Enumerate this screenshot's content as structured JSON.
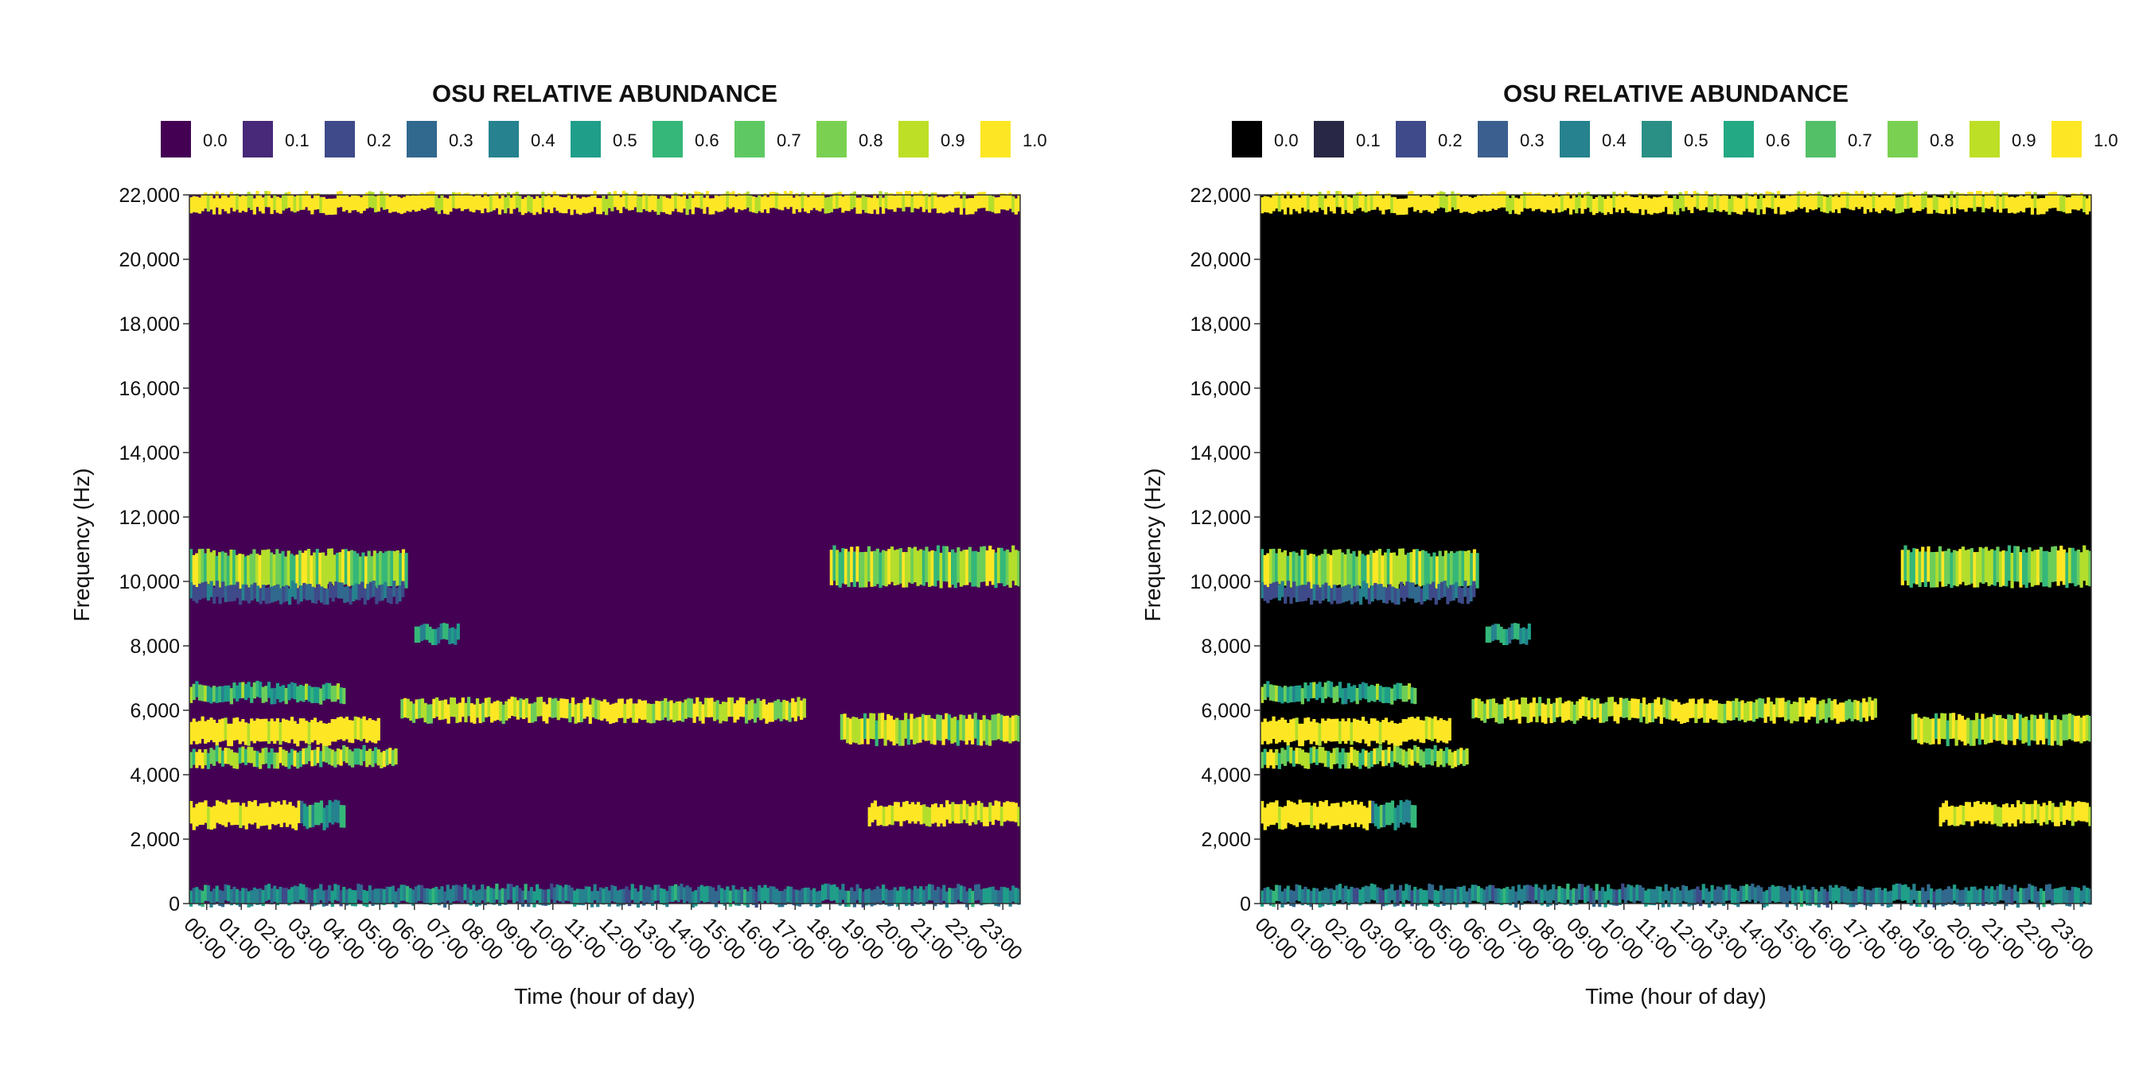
{
  "chart_data": [
    {
      "type": "heatmap",
      "legend_title": "OSU RELATIVE ABUNDANCE",
      "legend_position": "top",
      "xlabel": "Time (hour of day)",
      "ylabel": "Frequency (Hz)",
      "ylim": [
        0,
        22000
      ],
      "x_tick_labels": [
        "00:00",
        "01:00",
        "02:00",
        "03:00",
        "04:00",
        "05:00",
        "06:00",
        "07:00",
        "08:00",
        "09:00",
        "10:00",
        "11:00",
        "12:00",
        "13:00",
        "14:00",
        "15:00",
        "16:00",
        "17:00",
        "18:00",
        "19:00",
        "20:00",
        "21:00",
        "22:00",
        "23:00"
      ],
      "y_tick_labels": [
        "0",
        "2,000",
        "4,000",
        "6,000",
        "8,000",
        "10,000",
        "12,000",
        "14,000",
        "16,000",
        "18,000",
        "20,000",
        "22,000"
      ],
      "y_tick_values": [
        0,
        2000,
        4000,
        6000,
        8000,
        10000,
        12000,
        14000,
        16000,
        18000,
        20000,
        22000
      ],
      "legend_values": [
        "0.0",
        "0.1",
        "0.2",
        "0.3",
        "0.4",
        "0.5",
        "0.6",
        "0.7",
        "0.8",
        "0.9",
        "1.0"
      ],
      "colors": [
        "#440154",
        "#482878",
        "#3E4A89",
        "#31688E",
        "#26828E",
        "#1F9E89",
        "#35B779",
        "#6DCD59",
        "#B4DE2C",
        "#FDE725",
        "#FDE725"
      ],
      "legend_colors": [
        "#440154",
        "#482878",
        "#3E4A89",
        "#31688E",
        "#26828E",
        "#1F9E89",
        "#35B779",
        "#5EC962",
        "#7AD151",
        "#BDDF26",
        "#FDE725"
      ],
      "grid": false,
      "bands": [
        {
          "t0": 0,
          "t1": 24,
          "f0": 21500,
          "f1": 22000,
          "value": 0.95
        },
        {
          "t0": 0,
          "t1": 6.3,
          "f0": 9800,
          "f1": 10900,
          "value": 0.75
        },
        {
          "t0": 18.5,
          "t1": 24,
          "f0": 9900,
          "f1": 11000,
          "value": 0.75
        },
        {
          "t0": 0,
          "t1": 6.2,
          "f0": 9400,
          "f1": 9900,
          "value": 0.25
        },
        {
          "t0": 0,
          "t1": 4.5,
          "f0": 6300,
          "f1": 6800,
          "value": 0.6
        },
        {
          "t0": 0,
          "t1": 5.5,
          "f0": 5000,
          "f1": 5700,
          "value": 1.0
        },
        {
          "t0": 0,
          "t1": 6.0,
          "f0": 4300,
          "f1": 4800,
          "value": 0.75
        },
        {
          "t0": 0,
          "t1": 3.2,
          "f0": 2400,
          "f1": 3100,
          "value": 1.0
        },
        {
          "t0": 3.2,
          "t1": 4.5,
          "f0": 2400,
          "f1": 3100,
          "value": 0.5
        },
        {
          "t0": 6.1,
          "t1": 17.8,
          "f0": 5700,
          "f1": 6300,
          "value": 0.85
        },
        {
          "t0": 18.8,
          "t1": 24,
          "f0": 5000,
          "f1": 5800,
          "value": 0.8
        },
        {
          "t0": 19.6,
          "t1": 24,
          "f0": 2500,
          "f1": 3100,
          "value": 0.95
        },
        {
          "t0": 0,
          "t1": 24,
          "f0": 0,
          "f1": 500,
          "value": 0.4
        },
        {
          "t0": 6.5,
          "t1": 7.8,
          "f0": 8100,
          "f1": 8600,
          "value": 0.5
        }
      ]
    },
    {
      "type": "heatmap",
      "legend_title": "OSU RELATIVE ABUNDANCE",
      "legend_position": "top",
      "xlabel": "Time (hour of day)",
      "ylabel": "Frequency (Hz)",
      "ylim": [
        0,
        22000
      ],
      "x_tick_labels": [
        "00:00",
        "01:00",
        "02:00",
        "03:00",
        "04:00",
        "05:00",
        "06:00",
        "07:00",
        "08:00",
        "09:00",
        "10:00",
        "11:00",
        "12:00",
        "13:00",
        "14:00",
        "15:00",
        "16:00",
        "17:00",
        "18:00",
        "19:00",
        "20:00",
        "21:00",
        "22:00",
        "23:00"
      ],
      "y_tick_labels": [
        "0",
        "2,000",
        "4,000",
        "6,000",
        "8,000",
        "10,000",
        "12,000",
        "14,000",
        "16,000",
        "18,000",
        "20,000",
        "22,000"
      ],
      "y_tick_values": [
        0,
        2000,
        4000,
        6000,
        8000,
        10000,
        12000,
        14000,
        16000,
        18000,
        20000,
        22000
      ],
      "legend_values": [
        "0.0",
        "0.1",
        "0.2",
        "0.3",
        "0.4",
        "0.5",
        "0.6",
        "0.7",
        "0.8",
        "0.9",
        "1.0"
      ],
      "colors": [
        "#000000",
        "#282846",
        "#3E4A89",
        "#31688E",
        "#26828E",
        "#1F9E89",
        "#35B779",
        "#6DCD59",
        "#B4DE2C",
        "#FDE725",
        "#FDE725"
      ],
      "legend_colors": [
        "#000000",
        "#282846",
        "#3E4A89",
        "#3B5F8F",
        "#26828E",
        "#2A8F84",
        "#23A983",
        "#53C068",
        "#7AD151",
        "#BDDF26",
        "#FDE725"
      ],
      "grid": false,
      "bands": [
        {
          "t0": 0,
          "t1": 24,
          "f0": 21500,
          "f1": 22000,
          "value": 0.95
        },
        {
          "t0": 0,
          "t1": 6.3,
          "f0": 9800,
          "f1": 10900,
          "value": 0.75
        },
        {
          "t0": 18.5,
          "t1": 24,
          "f0": 9900,
          "f1": 11000,
          "value": 0.75
        },
        {
          "t0": 0,
          "t1": 6.2,
          "f0": 9400,
          "f1": 9900,
          "value": 0.25
        },
        {
          "t0": 0,
          "t1": 4.5,
          "f0": 6300,
          "f1": 6800,
          "value": 0.6
        },
        {
          "t0": 0,
          "t1": 5.5,
          "f0": 5000,
          "f1": 5700,
          "value": 1.0
        },
        {
          "t0": 0,
          "t1": 6.0,
          "f0": 4300,
          "f1": 4800,
          "value": 0.75
        },
        {
          "t0": 0,
          "t1": 3.2,
          "f0": 2400,
          "f1": 3100,
          "value": 1.0
        },
        {
          "t0": 3.2,
          "t1": 4.5,
          "f0": 2400,
          "f1": 3100,
          "value": 0.5
        },
        {
          "t0": 6.1,
          "t1": 17.8,
          "f0": 5700,
          "f1": 6300,
          "value": 0.85
        },
        {
          "t0": 18.8,
          "t1": 24,
          "f0": 5000,
          "f1": 5800,
          "value": 0.8
        },
        {
          "t0": 19.6,
          "t1": 24,
          "f0": 2500,
          "f1": 3100,
          "value": 0.95
        },
        {
          "t0": 0,
          "t1": 24,
          "f0": 0,
          "f1": 500,
          "value": 0.4
        },
        {
          "t0": 6.5,
          "t1": 7.8,
          "f0": 8100,
          "f1": 8600,
          "value": 0.5
        }
      ]
    }
  ]
}
